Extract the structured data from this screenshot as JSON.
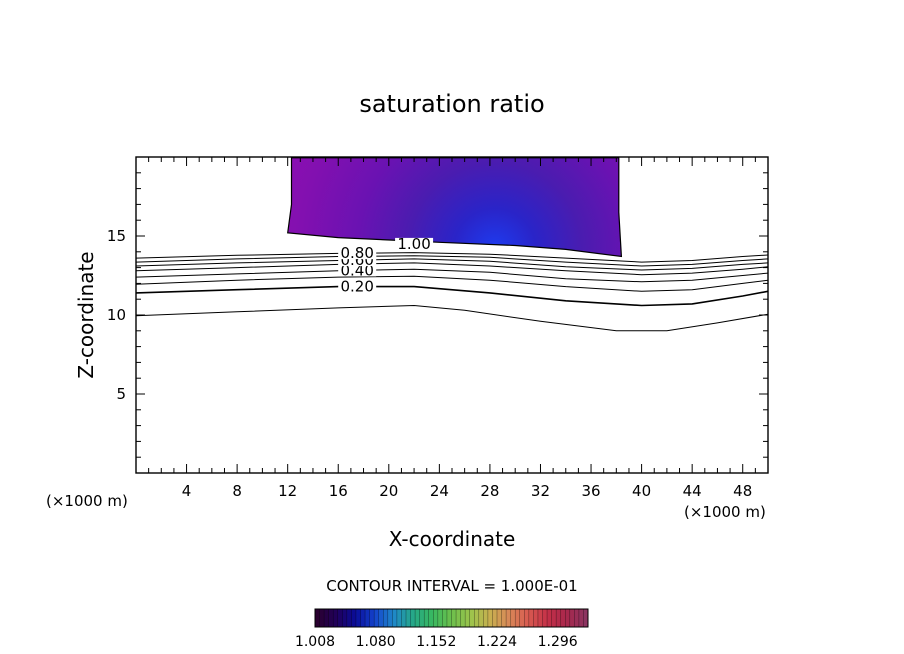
{
  "chart_data": {
    "type": "contour",
    "title": "saturation ratio",
    "xlabel": "X-coordinate",
    "ylabel": "Z-coordinate",
    "x_unit_label": "(×1000 m)",
    "x_unit_label_right": "(×1000 m)",
    "xlim": [
      0,
      50
    ],
    "ylim": [
      0,
      20
    ],
    "x_ticks": [
      4,
      8,
      12,
      16,
      20,
      24,
      28,
      32,
      36,
      40,
      44,
      48
    ],
    "y_ticks": [
      5,
      10,
      15
    ],
    "contour_interval_text": "CONTOUR INTERVAL = 1.000E-01",
    "contour_labels": [
      {
        "text": "0.20",
        "level": 0.2,
        "x": 17.5
      },
      {
        "text": "0.40",
        "level": 0.4,
        "x": 17.5
      },
      {
        "text": "0.60",
        "level": 0.6,
        "x": 17.5
      },
      {
        "text": "0.80",
        "level": 0.8,
        "x": 17.5
      },
      {
        "text": "1.00",
        "level": 1.0,
        "x": 22.0
      }
    ],
    "contour_lines": [
      {
        "level": 0.1,
        "points": [
          [
            0,
            9.95
          ],
          [
            8,
            10.2
          ],
          [
            16,
            10.45
          ],
          [
            22,
            10.6
          ],
          [
            26,
            10.3
          ],
          [
            32,
            9.6
          ],
          [
            38,
            9.0
          ],
          [
            42,
            9.0
          ],
          [
            46,
            9.5
          ],
          [
            50,
            10.05
          ]
        ]
      },
      {
        "level": 0.2,
        "points": [
          [
            0,
            11.4
          ],
          [
            8,
            11.6
          ],
          [
            16,
            11.8
          ],
          [
            22,
            11.8
          ],
          [
            28,
            11.4
          ],
          [
            34,
            10.9
          ],
          [
            40,
            10.6
          ],
          [
            44,
            10.7
          ],
          [
            48,
            11.2
          ],
          [
            50,
            11.5
          ]
        ]
      },
      {
        "level": 0.3,
        "points": [
          [
            0,
            11.95
          ],
          [
            8,
            12.2
          ],
          [
            16,
            12.4
          ],
          [
            22,
            12.45
          ],
          [
            28,
            12.2
          ],
          [
            34,
            11.8
          ],
          [
            40,
            11.5
          ],
          [
            44,
            11.6
          ],
          [
            48,
            12.0
          ],
          [
            50,
            12.2
          ]
        ]
      },
      {
        "level": 0.4,
        "points": [
          [
            0,
            12.4
          ],
          [
            8,
            12.6
          ],
          [
            16,
            12.8
          ],
          [
            22,
            12.9
          ],
          [
            28,
            12.7
          ],
          [
            34,
            12.3
          ],
          [
            40,
            12.1
          ],
          [
            44,
            12.2
          ],
          [
            48,
            12.5
          ],
          [
            50,
            12.65
          ]
        ]
      },
      {
        "level": 0.5,
        "points": [
          [
            0,
            12.8
          ],
          [
            8,
            13.0
          ],
          [
            16,
            13.2
          ],
          [
            22,
            13.3
          ],
          [
            28,
            13.1
          ],
          [
            34,
            12.8
          ],
          [
            40,
            12.55
          ],
          [
            44,
            12.65
          ],
          [
            48,
            12.9
          ],
          [
            50,
            13.05
          ]
        ]
      },
      {
        "level": 0.6,
        "points": [
          [
            0,
            13.1
          ],
          [
            8,
            13.3
          ],
          [
            16,
            13.45
          ],
          [
            22,
            13.55
          ],
          [
            28,
            13.4
          ],
          [
            34,
            13.05
          ],
          [
            40,
            12.85
          ],
          [
            44,
            12.95
          ],
          [
            48,
            13.2
          ],
          [
            50,
            13.3
          ]
        ]
      },
      {
        "level": 0.7,
        "points": [
          [
            0,
            13.35
          ],
          [
            8,
            13.55
          ],
          [
            16,
            13.7
          ],
          [
            22,
            13.75
          ],
          [
            28,
            13.65
          ],
          [
            34,
            13.35
          ],
          [
            40,
            13.1
          ],
          [
            44,
            13.2
          ],
          [
            48,
            13.45
          ],
          [
            50,
            13.55
          ]
        ]
      },
      {
        "level": 0.8,
        "points": [
          [
            0,
            13.6
          ],
          [
            8,
            13.78
          ],
          [
            16,
            13.9
          ],
          [
            22,
            13.95
          ],
          [
            28,
            13.85
          ],
          [
            34,
            13.6
          ],
          [
            40,
            13.35
          ],
          [
            44,
            13.45
          ],
          [
            48,
            13.7
          ],
          [
            50,
            13.8
          ]
        ]
      }
    ],
    "supersaturated_region": {
      "min_value": 1.0,
      "outline": [
        [
          12.3,
          19.95
        ],
        [
          12.3,
          17.0
        ],
        [
          12.0,
          15.2
        ],
        [
          16,
          14.9
        ],
        [
          24,
          14.6
        ],
        [
          30,
          14.4
        ],
        [
          34,
          14.15
        ],
        [
          38.4,
          13.7
        ],
        [
          38.2,
          16.5
        ],
        [
          38.2,
          19.95
        ]
      ]
    },
    "colorbar": {
      "min": 1.008,
      "max": 1.332,
      "tick_labels": [
        "1.008",
        "1.080",
        "1.152",
        "1.224",
        "1.296"
      ],
      "tick_values": [
        1.008,
        1.08,
        1.152,
        1.224,
        1.296
      ],
      "colors": [
        "#2a0030",
        "#20005a",
        "#0a0c9a",
        "#1444cc",
        "#1f88c8",
        "#26a888",
        "#38b860",
        "#6cc04c",
        "#9cc44c",
        "#c8b050",
        "#d88858",
        "#d85a50",
        "#c43048",
        "#a8284c",
        "#8c3460"
      ]
    },
    "grid": false,
    "legend": "none"
  }
}
